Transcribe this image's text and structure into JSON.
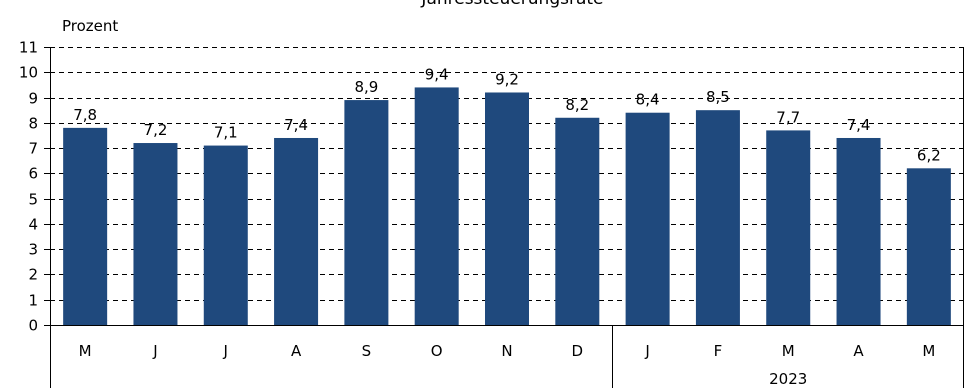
{
  "chart_data": {
    "type": "bar",
    "title": "-Jahressteuerungsrate-",
    "ylabel": "Prozent",
    "xlabel": "",
    "ylim": [
      0,
      11
    ],
    "yticks": [
      0,
      1,
      2,
      3,
      4,
      5,
      6,
      7,
      8,
      9,
      10,
      11
    ],
    "grid": true,
    "categories": [
      "M",
      "J",
      "J",
      "A",
      "S",
      "O",
      "N",
      "D",
      "J",
      "F",
      "M",
      "A",
      "M"
    ],
    "values": [
      7.8,
      7.2,
      7.1,
      7.4,
      8.9,
      9.4,
      9.2,
      8.2,
      8.4,
      8.5,
      7.7,
      7.4,
      6.2
    ],
    "value_labels": [
      "7,8",
      "7,2",
      "7,1",
      "7,4",
      "8,9",
      "9,4",
      "9,2",
      "8,2",
      "8,4",
      "8,5",
      "7,7",
      "7,4",
      "6,2"
    ],
    "year_groups": [
      {
        "label": "",
        "start": 0,
        "end": 7
      },
      {
        "label": "2023",
        "start": 8,
        "end": 12
      }
    ],
    "colors": {
      "bar": "#1f497d",
      "axis": "#000000",
      "grid": "#000000"
    }
  }
}
